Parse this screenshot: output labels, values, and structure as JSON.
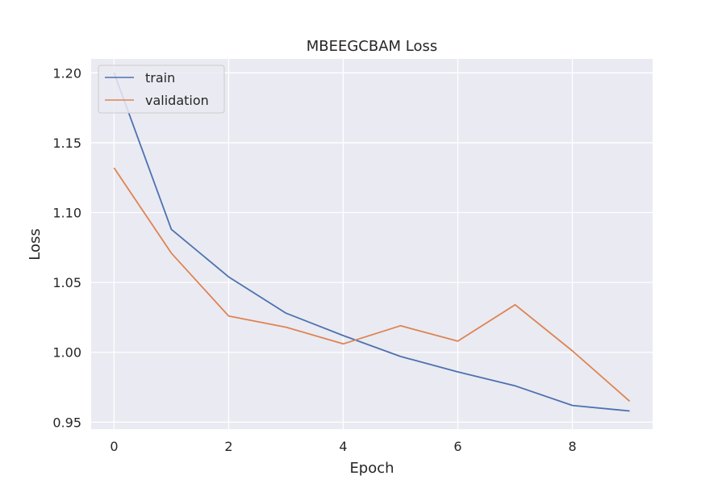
{
  "chart_data": {
    "type": "line",
    "title": "MBEEGCBAM Loss",
    "xlabel": "Epoch",
    "ylabel": "Loss",
    "x": [
      0,
      1,
      2,
      3,
      4,
      5,
      6,
      7,
      8,
      9
    ],
    "xlim": [
      -0.4,
      9.4
    ],
    "ylim": [
      0.945,
      1.21
    ],
    "x_ticks": [
      0,
      2,
      4,
      6,
      8
    ],
    "x_tick_labels": [
      "0",
      "2",
      "4",
      "6",
      "8"
    ],
    "y_ticks": [
      0.95,
      1.0,
      1.05,
      1.1,
      1.15,
      1.2
    ],
    "y_tick_labels": [
      "0.95",
      "1.00",
      "1.05",
      "1.10",
      "1.15",
      "1.20"
    ],
    "grid": true,
    "legend_position": "top-left",
    "series": [
      {
        "name": "train",
        "color": "#4c72b0",
        "values": [
          1.2,
          1.088,
          1.054,
          1.028,
          1.012,
          0.997,
          0.986,
          0.976,
          0.962,
          0.958
        ]
      },
      {
        "name": "validation",
        "color": "#dd8452",
        "values": [
          1.132,
          1.071,
          1.026,
          1.018,
          1.006,
          1.019,
          1.008,
          1.034,
          1.001,
          0.965
        ]
      }
    ]
  }
}
